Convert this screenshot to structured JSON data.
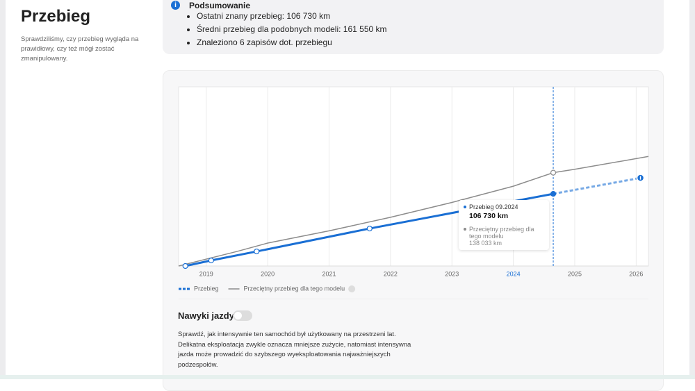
{
  "header": {
    "title": "Przebieg",
    "description": "Sprawdziliśmy, czy przebieg wygląda na prawidłowy, czy też mógł zostać zmanipulowany."
  },
  "summary": {
    "title": "Podsumowanie",
    "items": [
      "Ostatni znany przebieg: 106 730 km",
      "Średni przebieg dla podobnych modeli: 161 550 km",
      "Znaleziono 6 zapisów dot. przebiegu"
    ]
  },
  "chart_data": {
    "type": "line",
    "xlim": [
      2018.55,
      2026.2
    ],
    "ylim": [
      0,
      265000
    ],
    "xticks": [
      2019,
      2020,
      2021,
      2022,
      2023,
      2024,
      2025,
      2026
    ],
    "grid": true,
    "highlight_x": 2024.65,
    "legend_position": "bottom-left",
    "series": [
      {
        "name": "Przebieg",
        "color": "#1a6fd4",
        "x": [
          2018.66,
          2019.08,
          2019.82,
          2021.66,
          2024.65,
          2026.07
        ],
        "values": [
          0,
          8200,
          21500,
          55400,
          106730,
          130300
        ],
        "projected": [
          false,
          false,
          false,
          false,
          false,
          true
        ]
      },
      {
        "name": "Przeciętny przebieg dla tego modelu",
        "color": "#8c8c8c",
        "x": [
          2018.55,
          2019.5,
          2020,
          2021,
          2022,
          2023,
          2024,
          2024.65,
          2025,
          2026.2
        ],
        "values": [
          0,
          21500,
          33900,
          52000,
          72000,
          94000,
          118000,
          138033,
          143000,
          162000
        ]
      }
    ],
    "tooltip": {
      "title": "Przebieg 09.2024",
      "value_label": "106 730 km",
      "avg_title": "Przeciętny przebieg dla tego modelu",
      "avg_label": "138 033 km"
    }
  },
  "habits": {
    "title": "Nawyki jazdy",
    "text": "Sprawdź, jak intensywnie ten samochód był użytkowany na przestrzeni lat. Delikatna eksploatacja zwykle oznacza mniejsze zużycie, natomiast intensywna jazda może prowadzić do szybszego wyeksploatowania najważniejszych podzespołów."
  }
}
